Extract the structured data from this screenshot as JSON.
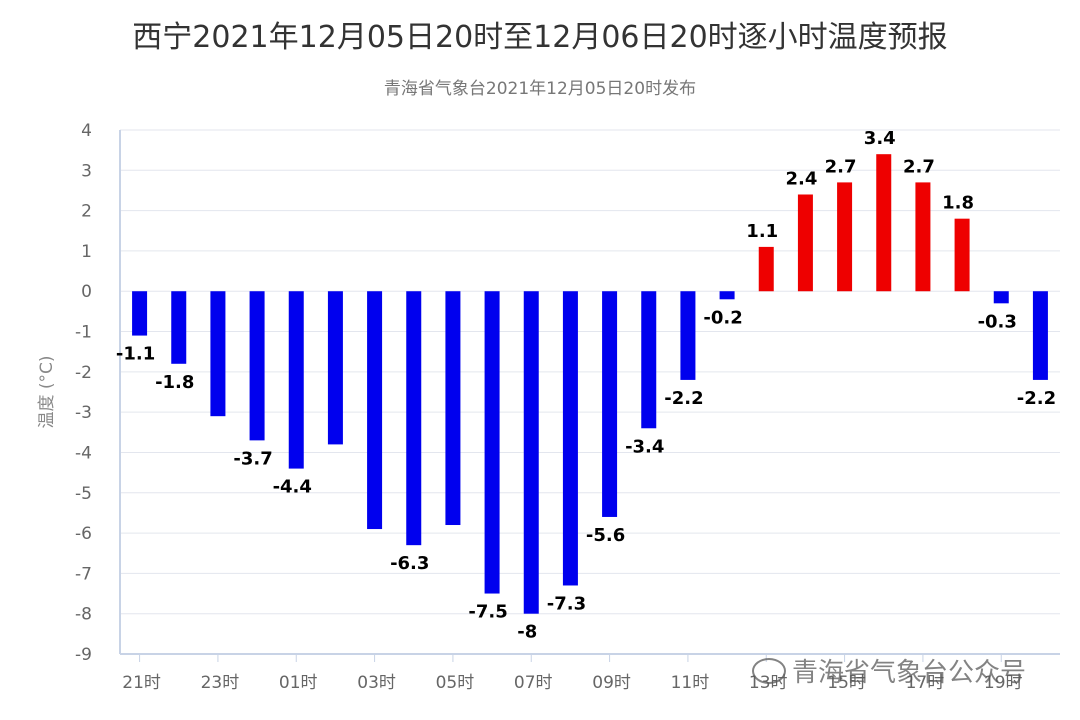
{
  "chart_data": {
    "type": "bar",
    "title": "西宁2021年12月05日20时至12月06日20时逐小时温度预报",
    "subtitle": "青海省气象台2021年12月05日20时发布",
    "ylabel": "温度 (°C)",
    "ylim": [
      -9,
      4
    ],
    "yticks": [
      "-9",
      "-8",
      "-7",
      "-6",
      "-5",
      "-4",
      "-3",
      "-2",
      "-1",
      "0",
      "1",
      "2",
      "3",
      "4"
    ],
    "xticks": [
      "21时",
      "23时",
      "01时",
      "03时",
      "05时",
      "07时",
      "09时",
      "11时",
      "13时",
      "15时",
      "17时",
      "19时"
    ],
    "categories": [
      "21",
      "22",
      "23",
      "00",
      "01",
      "02",
      "03",
      "04",
      "05",
      "06",
      "07",
      "08",
      "09",
      "10",
      "11",
      "12",
      "13",
      "14",
      "15",
      "16",
      "17",
      "18",
      "19",
      "20"
    ],
    "values": [
      -1.1,
      -1.8,
      -3.1,
      -3.7,
      -4.4,
      -3.8,
      -5.9,
      -6.3,
      -5.8,
      -7.5,
      -8,
      -7.3,
      -5.6,
      -3.4,
      -2.2,
      -0.2,
      1.1,
      2.4,
      2.7,
      3.4,
      2.7,
      1.8,
      -0.3,
      -2.2
    ],
    "data_labels": [
      "-1.1",
      "-1.8",
      "",
      "-3.7",
      "-4.4",
      "",
      "",
      "-6.3",
      "",
      "-7.5",
      "-8",
      "-7.3",
      "-5.6",
      "-3.4",
      "-2.2",
      "-0.2",
      "1.1",
      "2.4",
      "2.7",
      "3.4",
      "2.7",
      "1.8",
      "-0.3",
      "-2.2"
    ],
    "grid": true,
    "colors": {
      "negative": "#0000ee",
      "positive": "#ee0000",
      "grid": "#e3e6ee",
      "axis": "#c8d3e6",
      "text": "#666666",
      "label": "#000000"
    }
  },
  "watermark": {
    "text": "青海省气象台公众号",
    "icon": "wechat-icon"
  }
}
